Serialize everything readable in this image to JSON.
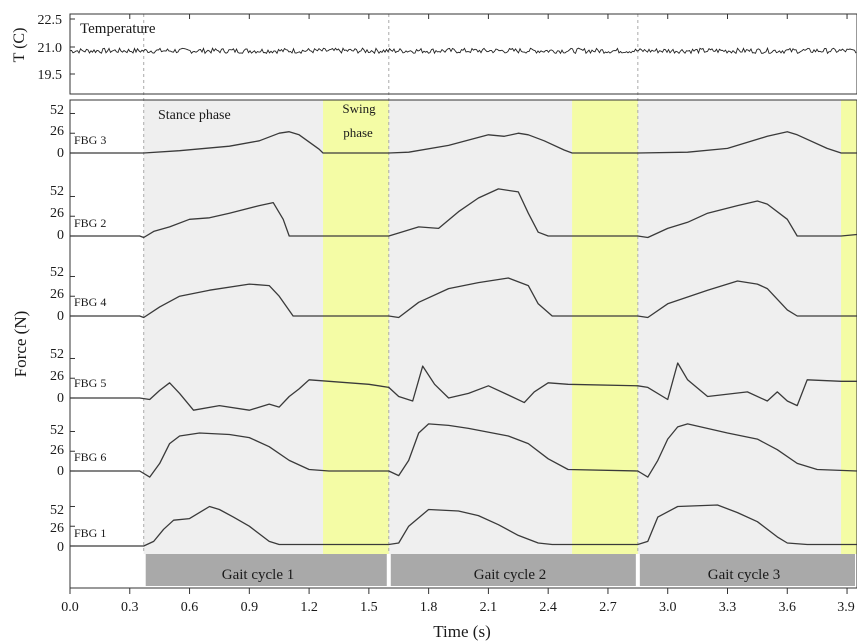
{
  "chart_data": {
    "type": "line",
    "xlabel": "Time (s)",
    "x_ticks": [
      "0.0",
      "0.3",
      "0.6",
      "0.9",
      "1.2",
      "1.5",
      "1.8",
      "2.1",
      "2.4",
      "2.7",
      "3.0",
      "3.3",
      "3.6",
      "3.9"
    ],
    "xlim": [
      0,
      3.95
    ],
    "grid": false,
    "panels": [
      {
        "label": "Temperature",
        "ylabel": "T (C)",
        "yticks": [
          "22.5",
          "21.0",
          "19.5"
        ],
        "ylim": [
          19.0,
          22.7
        ]
      },
      {
        "label": "FBG 3",
        "yticks": [
          "52",
          "26",
          "0"
        ]
      },
      {
        "label": "FBG 2",
        "yticks": [
          "52",
          "26",
          "0"
        ]
      },
      {
        "label": "FBG 4",
        "yticks": [
          "52",
          "26",
          "0"
        ]
      },
      {
        "label": "FBG 5",
        "yticks": [
          "52",
          "26",
          "0"
        ]
      },
      {
        "label": "FBG 6",
        "yticks": [
          "52",
          "26",
          "0"
        ]
      },
      {
        "label": "FBG 1",
        "yticks": [
          "52",
          "26",
          "0"
        ]
      }
    ],
    "force_ylabel": "Force (N)",
    "annotations": {
      "stance": "Stance phase",
      "swing_line1": "Swing",
      "swing_line2": "phase"
    },
    "cycle_bounds": [
      0.37,
      1.6,
      2.85
    ],
    "swing_bands": [
      [
        1.27,
        1.6
      ],
      [
        2.52,
        2.85
      ],
      [
        3.87,
        3.95
      ]
    ],
    "gait_cycles": [
      {
        "label": "Gait cycle 1",
        "start": 0.37,
        "end": 1.6
      },
      {
        "label": "Gait cycle 2",
        "start": 1.6,
        "end": 2.85
      },
      {
        "label": "Gait cycle 3",
        "start": 2.85,
        "end": 3.95
      }
    ],
    "temperature": {
      "value": 21.0,
      "noise": 0.12
    },
    "series": [
      {
        "name": "FBG 3",
        "x": [
          0.0,
          0.35,
          0.37,
          0.55,
          0.8,
          0.95,
          1.05,
          1.1,
          1.15,
          1.25,
          1.27,
          1.6,
          1.7,
          1.9,
          2.1,
          2.18,
          2.25,
          2.3,
          2.38,
          2.48,
          2.52,
          2.85,
          3.1,
          3.3,
          3.5,
          3.6,
          3.65,
          3.8,
          3.87,
          3.95
        ],
        "y": [
          0,
          0,
          0,
          3,
          9,
          16,
          26,
          28,
          24,
          5,
          0,
          0,
          1,
          10,
          24,
          22,
          26,
          24,
          16,
          4,
          0,
          0,
          1,
          6,
          22,
          28,
          24,
          6,
          0,
          0
        ]
      },
      {
        "name": "FBG 2",
        "x": [
          0.0,
          0.35,
          0.37,
          0.42,
          0.5,
          0.6,
          0.7,
          0.8,
          0.95,
          1.02,
          1.07,
          1.1,
          1.6,
          1.65,
          1.75,
          1.85,
          1.95,
          2.05,
          2.15,
          2.25,
          2.3,
          2.35,
          2.4,
          2.85,
          2.9,
          3.0,
          3.1,
          3.2,
          3.35,
          3.45,
          3.5,
          3.6,
          3.65,
          3.87,
          3.95
        ],
        "y": [
          0,
          0,
          -2,
          6,
          12,
          22,
          24,
          30,
          40,
          44,
          22,
          0,
          0,
          4,
          12,
          10,
          32,
          50,
          62,
          58,
          30,
          5,
          0,
          0,
          -2,
          10,
          18,
          30,
          40,
          46,
          42,
          22,
          0,
          0,
          2
        ]
      },
      {
        "name": "FBG 4",
        "x": [
          0.0,
          0.35,
          0.37,
          0.45,
          0.55,
          0.7,
          0.9,
          1.0,
          1.05,
          1.12,
          1.15,
          1.6,
          1.65,
          1.75,
          1.9,
          2.05,
          2.2,
          2.3,
          2.35,
          2.42,
          2.45,
          2.85,
          2.9,
          3.0,
          3.2,
          3.35,
          3.45,
          3.5,
          3.6,
          3.65,
          3.95
        ],
        "y": [
          0,
          0,
          -2,
          12,
          26,
          34,
          42,
          40,
          26,
          0,
          0,
          0,
          -2,
          18,
          36,
          44,
          50,
          40,
          16,
          0,
          0,
          0,
          -2,
          16,
          34,
          46,
          42,
          36,
          8,
          0,
          0
        ]
      },
      {
        "name": "FBG 5",
        "x": [
          0.0,
          0.35,
          0.4,
          0.45,
          0.5,
          0.55,
          0.62,
          0.75,
          0.9,
          1.0,
          1.05,
          1.1,
          1.15,
          1.2,
          1.3,
          1.5,
          1.6,
          1.65,
          1.72,
          1.77,
          1.83,
          1.9,
          2.0,
          2.1,
          2.2,
          2.28,
          2.33,
          2.4,
          2.5,
          2.85,
          2.9,
          3.0,
          3.05,
          3.1,
          3.2,
          3.4,
          3.5,
          3.55,
          3.6,
          3.65,
          3.7,
          3.87,
          3.95
        ],
        "y": [
          0,
          0,
          -2,
          10,
          20,
          6,
          -16,
          -10,
          -16,
          -8,
          -12,
          2,
          12,
          24,
          22,
          18,
          14,
          2,
          -4,
          42,
          18,
          0,
          6,
          16,
          4,
          -6,
          8,
          20,
          18,
          16,
          14,
          -2,
          46,
          24,
          2,
          8,
          -4,
          8,
          -4,
          -10,
          24,
          22,
          22
        ]
      },
      {
        "name": "FBG 6",
        "x": [
          0.0,
          0.35,
          0.4,
          0.45,
          0.5,
          0.55,
          0.65,
          0.8,
          0.9,
          1.0,
          1.1,
          1.2,
          1.3,
          1.6,
          1.65,
          1.7,
          1.75,
          1.8,
          1.9,
          2.0,
          2.2,
          2.3,
          2.4,
          2.5,
          2.85,
          2.9,
          2.95,
          3.0,
          3.05,
          3.1,
          3.3,
          3.45,
          3.55,
          3.65,
          3.75,
          3.95
        ],
        "y": [
          0,
          0,
          -8,
          10,
          36,
          46,
          50,
          48,
          44,
          32,
          14,
          2,
          0,
          0,
          -6,
          14,
          50,
          62,
          60,
          56,
          46,
          36,
          16,
          2,
          0,
          -8,
          14,
          42,
          58,
          62,
          50,
          42,
          28,
          10,
          2,
          0
        ]
      },
      {
        "name": "FBG 1",
        "x": [
          0.0,
          0.37,
          0.42,
          0.47,
          0.52,
          0.6,
          0.7,
          0.75,
          0.82,
          0.9,
          1.0,
          1.05,
          1.1,
          1.6,
          1.65,
          1.7,
          1.8,
          1.95,
          2.05,
          2.15,
          2.25,
          2.35,
          2.42,
          2.85,
          2.9,
          2.95,
          3.05,
          3.25,
          3.35,
          3.45,
          3.55,
          3.6,
          3.7,
          3.95
        ],
        "y": [
          0,
          0,
          6,
          22,
          34,
          36,
          52,
          48,
          38,
          26,
          6,
          2,
          2,
          2,
          4,
          26,
          48,
          46,
          40,
          28,
          14,
          4,
          2,
          2,
          6,
          38,
          52,
          54,
          44,
          32,
          12,
          4,
          2,
          2
        ]
      }
    ]
  }
}
